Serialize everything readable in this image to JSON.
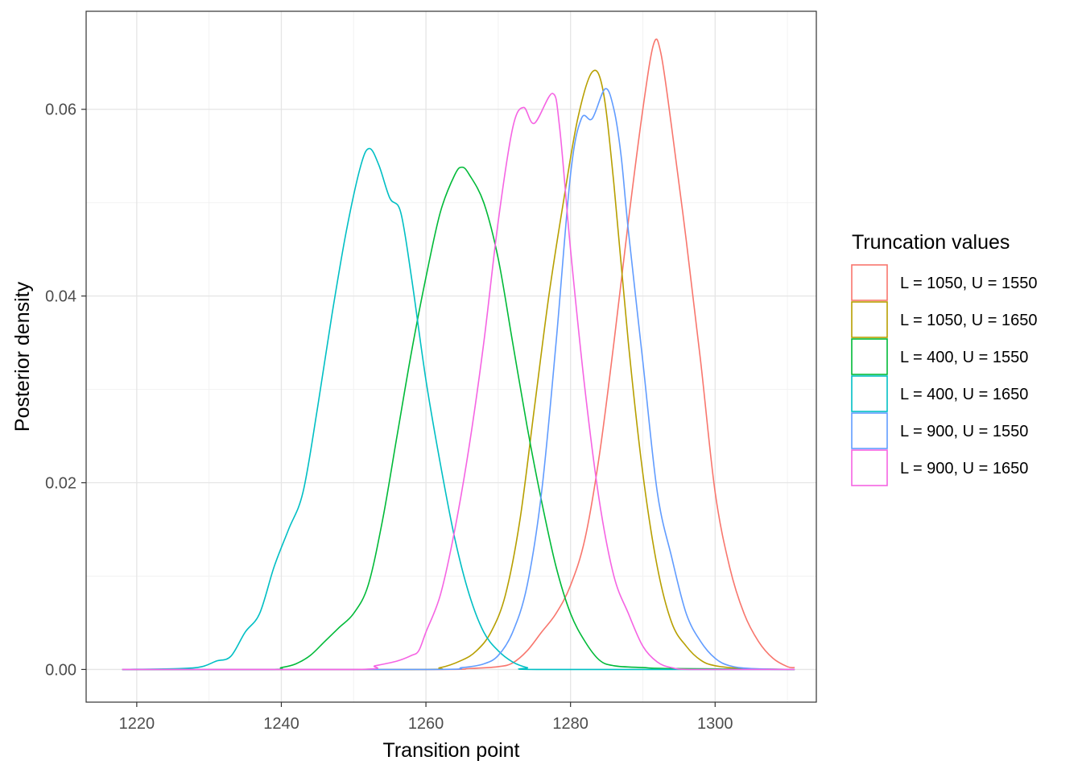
{
  "chart_data": {
    "type": "line",
    "title": "",
    "xlabel": "Transition point",
    "ylabel": "Posterior density",
    "xlim": [
      1213,
      1314
    ],
    "ylim": [
      -0.0035,
      0.0705
    ],
    "x_ticks": [
      1220,
      1240,
      1260,
      1280,
      1300
    ],
    "x_tick_labels": [
      "1220",
      "1240",
      "1260",
      "1280",
      "1300"
    ],
    "y_ticks": [
      0,
      0.02,
      0.04,
      0.06
    ],
    "y_tick_labels": [
      "0.00",
      "0.02",
      "0.04",
      "0.06"
    ],
    "grid": true,
    "legend": {
      "title": "Truncation values",
      "position": "right"
    },
    "series": [
      {
        "name": "L = 1050, U = 1550",
        "color": "#F8766D",
        "points": [
          [
            1218,
            0
          ],
          [
            1260,
            0
          ],
          [
            1266,
            0.0001
          ],
          [
            1270,
            0.0003
          ],
          [
            1272,
            0.0007
          ],
          [
            1274,
            0.002
          ],
          [
            1276,
            0.004
          ],
          [
            1278,
            0.006
          ],
          [
            1280,
            0.009
          ],
          [
            1282,
            0.014
          ],
          [
            1284,
            0.023
          ],
          [
            1286,
            0.035
          ],
          [
            1288,
            0.048
          ],
          [
            1290,
            0.06
          ],
          [
            1291.5,
            0.067
          ],
          [
            1292.5,
            0.066
          ],
          [
            1294,
            0.058
          ],
          [
            1296,
            0.046
          ],
          [
            1298,
            0.033
          ],
          [
            1300,
            0.019
          ],
          [
            1302,
            0.011
          ],
          [
            1304,
            0.006
          ],
          [
            1306,
            0.003
          ],
          [
            1308,
            0.0012
          ],
          [
            1310,
            0.0003
          ],
          [
            1311,
            0.0002
          ]
        ]
      },
      {
        "name": "L = 1050, U = 1650",
        "color": "#B79F00",
        "points": [
          [
            1218,
            0
          ],
          [
            1258,
            0
          ],
          [
            1262,
            0.0002
          ],
          [
            1265,
            0.001
          ],
          [
            1267,
            0.002
          ],
          [
            1269,
            0.004
          ],
          [
            1271,
            0.008
          ],
          [
            1273,
            0.016
          ],
          [
            1275,
            0.028
          ],
          [
            1277,
            0.04
          ],
          [
            1279,
            0.05
          ],
          [
            1281,
            0.059
          ],
          [
            1283,
            0.064
          ],
          [
            1284.5,
            0.062
          ],
          [
            1286,
            0.052
          ],
          [
            1288,
            0.035
          ],
          [
            1290,
            0.021
          ],
          [
            1292,
            0.011
          ],
          [
            1294,
            0.005
          ],
          [
            1296,
            0.0025
          ],
          [
            1298,
            0.001
          ],
          [
            1300,
            0.0004
          ],
          [
            1304,
            0.0001
          ],
          [
            1311,
            0
          ]
        ]
      },
      {
        "name": "L = 400, U = 1550",
        "color": "#00BA38",
        "points": [
          [
            1218,
            0
          ],
          [
            1238,
            0
          ],
          [
            1240,
            0.0002
          ],
          [
            1242,
            0.0006
          ],
          [
            1244,
            0.0015
          ],
          [
            1246,
            0.003
          ],
          [
            1248,
            0.0045
          ],
          [
            1250,
            0.006
          ],
          [
            1252,
            0.009
          ],
          [
            1254,
            0.016
          ],
          [
            1256,
            0.025
          ],
          [
            1258,
            0.034
          ],
          [
            1260,
            0.042
          ],
          [
            1262,
            0.049
          ],
          [
            1264,
            0.053
          ],
          [
            1265,
            0.0538
          ],
          [
            1266,
            0.053
          ],
          [
            1268,
            0.05
          ],
          [
            1270,
            0.044
          ],
          [
            1272,
            0.035
          ],
          [
            1274,
            0.026
          ],
          [
            1276,
            0.018
          ],
          [
            1278,
            0.011
          ],
          [
            1280,
            0.006
          ],
          [
            1282,
            0.003
          ],
          [
            1284,
            0.001
          ],
          [
            1286,
            0.0004
          ],
          [
            1290,
            0.0002
          ],
          [
            1294,
            0.0001
          ],
          [
            1311,
            0
          ]
        ]
      },
      {
        "name": "L = 400, U = 1650",
        "color": "#00BFC4",
        "points": [
          [
            1218,
            0
          ],
          [
            1226,
            0.0001
          ],
          [
            1229,
            0.0003
          ],
          [
            1231,
            0.0009
          ],
          [
            1233,
            0.0014
          ],
          [
            1235,
            0.004
          ],
          [
            1237,
            0.006
          ],
          [
            1239,
            0.011
          ],
          [
            1241,
            0.015
          ],
          [
            1243,
            0.019
          ],
          [
            1245,
            0.028
          ],
          [
            1247,
            0.038
          ],
          [
            1249,
            0.047
          ],
          [
            1251,
            0.054
          ],
          [
            1252.2,
            0.0558
          ],
          [
            1253.5,
            0.054
          ],
          [
            1255,
            0.0505
          ],
          [
            1256.5,
            0.049
          ],
          [
            1258,
            0.042
          ],
          [
            1260,
            0.031
          ],
          [
            1262,
            0.022
          ],
          [
            1264,
            0.014
          ],
          [
            1266,
            0.008
          ],
          [
            1268,
            0.004
          ],
          [
            1270,
            0.002
          ],
          [
            1272,
            0.0008
          ],
          [
            1274,
            0.0002
          ],
          [
            1276,
            0
          ],
          [
            1311,
            0
          ]
        ]
      },
      {
        "name": "L = 900, U = 1550",
        "color": "#619CFF",
        "points": [
          [
            1218,
            0
          ],
          [
            1260,
            0
          ],
          [
            1265,
            0.0002
          ],
          [
            1268,
            0.0006
          ],
          [
            1270,
            0.0015
          ],
          [
            1272,
            0.004
          ],
          [
            1274,
            0.009
          ],
          [
            1276,
            0.019
          ],
          [
            1278,
            0.035
          ],
          [
            1280,
            0.053
          ],
          [
            1281.5,
            0.059
          ],
          [
            1283,
            0.059
          ],
          [
            1284.8,
            0.0622
          ],
          [
            1286,
            0.06
          ],
          [
            1287,
            0.055
          ],
          [
            1288,
            0.047
          ],
          [
            1290,
            0.033
          ],
          [
            1292,
            0.019
          ],
          [
            1294,
            0.012
          ],
          [
            1296,
            0.006
          ],
          [
            1298,
            0.003
          ],
          [
            1300,
            0.0012
          ],
          [
            1302,
            0.0004
          ],
          [
            1305,
            0.0001
          ],
          [
            1311,
            0
          ]
        ]
      },
      {
        "name": "L = 900, U = 1650",
        "color": "#F564E3",
        "points": [
          [
            1218,
            0
          ],
          [
            1250,
            0
          ],
          [
            1253,
            0.0004
          ],
          [
            1256,
            0.0009
          ],
          [
            1258,
            0.0015
          ],
          [
            1259,
            0.002
          ],
          [
            1260,
            0.004
          ],
          [
            1262,
            0.008
          ],
          [
            1264,
            0.015
          ],
          [
            1266,
            0.024
          ],
          [
            1268,
            0.035
          ],
          [
            1270,
            0.048
          ],
          [
            1272,
            0.058
          ],
          [
            1273.5,
            0.0602
          ],
          [
            1275,
            0.0585
          ],
          [
            1277.5,
            0.0617
          ],
          [
            1278.5,
            0.058
          ],
          [
            1280,
            0.045
          ],
          [
            1282,
            0.03
          ],
          [
            1284,
            0.018
          ],
          [
            1286,
            0.01
          ],
          [
            1288,
            0.006
          ],
          [
            1290,
            0.0025
          ],
          [
            1292,
            0.0008
          ],
          [
            1294,
            0.0002
          ],
          [
            1297,
            0
          ],
          [
            1311,
            0
          ]
        ]
      }
    ]
  }
}
